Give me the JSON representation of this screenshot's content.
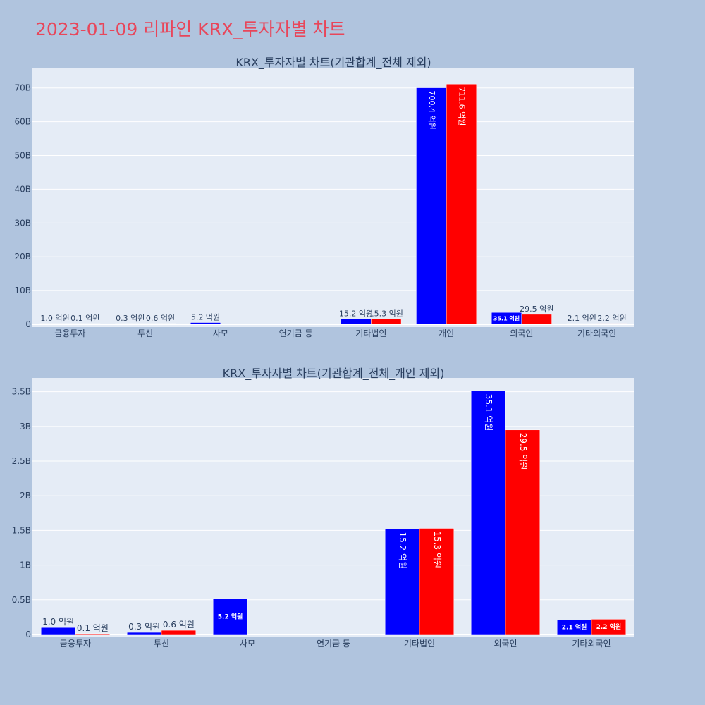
{
  "page": {
    "title": "2023-01-09 리파인 KRX_투자자별 차트",
    "background": "#b0c4de",
    "title_color": "#e8465a",
    "plot_background": "#e5ecf6"
  },
  "chart_data": [
    {
      "type": "bar",
      "title": "KRX_투자자별 차트(기관합계_전체 제외)",
      "categories": [
        "금융투자",
        "투신",
        "사모",
        "연기금 등",
        "기타법인",
        "개인",
        "외국인",
        "기타외국인"
      ],
      "yticks": [
        "0",
        "10B",
        "20B",
        "30B",
        "40B",
        "50B",
        "60B",
        "70B"
      ],
      "ylim": [
        0,
        76000000000
      ],
      "series": [
        {
          "color": "#0000ff",
          "values": [
            100000000,
            30000000,
            520000000,
            null,
            1520000000,
            70040000000,
            3510000000,
            210000000
          ],
          "labels": [
            "1.0 억원",
            "0.3 억원",
            "5.2 억원",
            "",
            "15.2 억원",
            "700.4 억원",
            "35.1 억원",
            "2.1 억원"
          ]
        },
        {
          "color": "#ff0000",
          "values": [
            10000000,
            60000000,
            null,
            null,
            1530000000,
            71160000000,
            2950000000,
            220000000
          ],
          "labels": [
            "0.1 억원",
            "0.6 억원",
            "",
            "",
            "15.3 억원",
            "711.6 억원",
            "29.5 억원",
            "2.2 억원"
          ]
        }
      ]
    },
    {
      "type": "bar",
      "title": "KRX_투자자별 차트(기관합계_전체_개인 제외)",
      "categories": [
        "금융투자",
        "투신",
        "사모",
        "연기금 등",
        "기타법인",
        "외국인",
        "기타외국인"
      ],
      "yticks": [
        "0",
        "0.5B",
        "1B",
        "1.5B",
        "2B",
        "2.5B",
        "3B",
        "3.5B"
      ],
      "ylim": [
        0,
        3700000000
      ],
      "series": [
        {
          "color": "#0000ff",
          "values": [
            100000000,
            30000000,
            520000000,
            null,
            1520000000,
            3510000000,
            210000000
          ],
          "labels": [
            "1.0 억원",
            "0.3 억원",
            "5.2 억원",
            "",
            "15.2 억원",
            "35.1 억원",
            "2.1 억원"
          ]
        },
        {
          "color": "#ff0000",
          "values": [
            10000000,
            60000000,
            null,
            null,
            1530000000,
            2950000000,
            220000000
          ],
          "labels": [
            "0.1 억원",
            "0.6 억원",
            "",
            "",
            "15.3 억원",
            "29.5 억원",
            "2.2 억원"
          ]
        }
      ]
    }
  ]
}
